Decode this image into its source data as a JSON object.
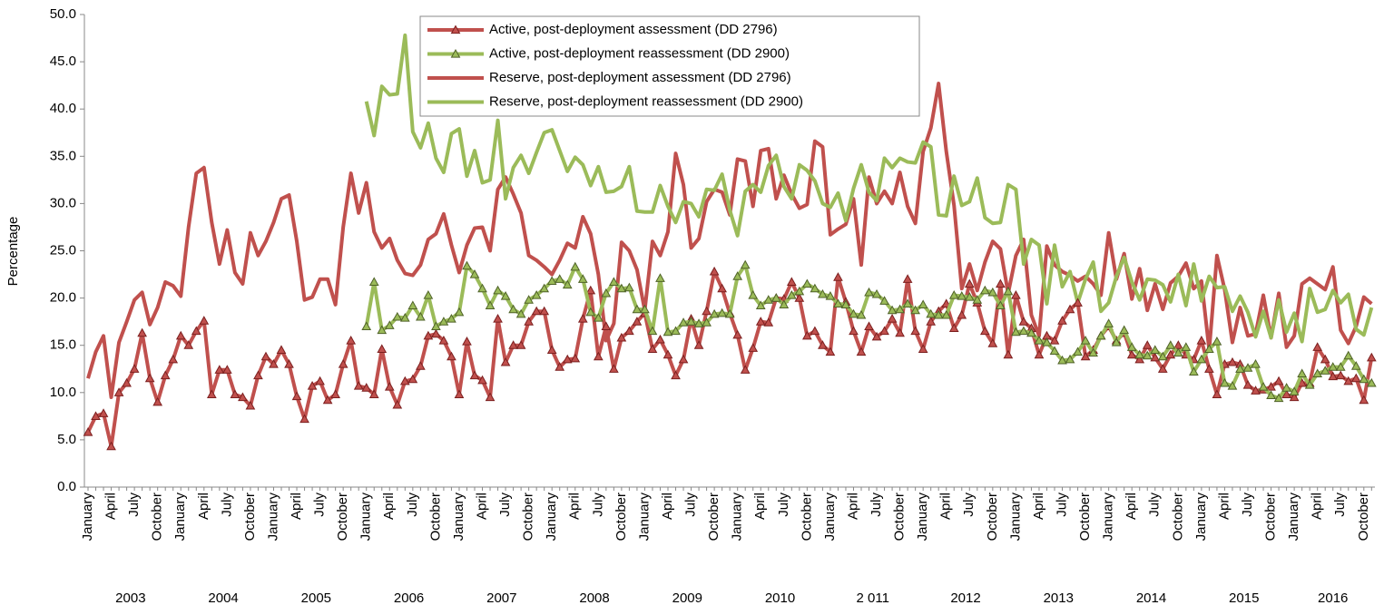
{
  "chart_data": {
    "type": "line",
    "y_label": "Percentage",
    "categories": [
      "January",
      null,
      null,
      "April",
      null,
      null,
      "July",
      null,
      null,
      "October",
      null,
      null,
      "January",
      null,
      null,
      "April",
      null,
      null,
      "July",
      null,
      null,
      "October",
      null,
      null,
      "January",
      null,
      null,
      "April",
      null,
      null,
      "July",
      null,
      null,
      "October",
      null,
      null,
      "January",
      null,
      null,
      "April",
      null,
      null,
      "July",
      null,
      null,
      "October",
      null,
      null,
      "January",
      null,
      null,
      "April",
      null,
      null,
      "July",
      null,
      null,
      "October",
      null,
      null,
      "January",
      null,
      null,
      "April",
      null,
      null,
      "July",
      null,
      null,
      "October",
      null,
      null,
      "January",
      null,
      null,
      "April",
      null,
      null,
      "July",
      null,
      null,
      "October",
      null,
      null,
      "January",
      null,
      null,
      "April",
      null,
      null,
      "July",
      null,
      null,
      "October",
      null,
      null,
      "January",
      null,
      null,
      "April",
      null,
      null,
      "July",
      null,
      null,
      "October",
      null,
      null,
      "January",
      null,
      null,
      "April",
      null,
      null,
      "July",
      null,
      null,
      "October",
      null,
      null,
      "January",
      null,
      null,
      "April",
      null,
      null,
      "July",
      null,
      null,
      "October",
      null,
      null,
      "January",
      null,
      null,
      "April",
      null,
      null,
      "July",
      null,
      null,
      "October",
      null,
      null,
      "January",
      null,
      null,
      "April",
      null,
      null,
      "July",
      null,
      null,
      "October",
      null,
      null,
      "January",
      null,
      null,
      "April",
      null,
      null,
      "July",
      null,
      null,
      "October",
      null
    ],
    "year_labels": [
      "2003",
      "2004",
      "2005",
      "2006",
      "2007",
      "2008",
      "2009",
      "2010",
      "2 011",
      "2012",
      "2013",
      "2014",
      "2015",
      "2016"
    ],
    "ylim": [
      0,
      50
    ],
    "yticks": [
      {
        "value": 0,
        "label": "0.0"
      },
      {
        "value": 5,
        "label": "5.0"
      },
      {
        "value": 10,
        "label": "10.0"
      },
      {
        "value": 15,
        "label": "15.0"
      },
      {
        "value": 20,
        "label": "20.0"
      },
      {
        "value": 25,
        "label": "25.0"
      },
      {
        "value": 30,
        "label": "30.0"
      },
      {
        "value": 35,
        "label": "35.0"
      },
      {
        "value": 40,
        "label": "40.0"
      },
      {
        "value": 45,
        "label": "45.0"
      },
      {
        "value": 50,
        "label": "50.0"
      }
    ],
    "legend": "top-center",
    "series": [
      {
        "name": "Active, post-deployment assessment (DD 2796)",
        "color": "#c0504d",
        "marker": "triangle",
        "marker_color": "#7b1f1f",
        "values": [
          5.8,
          7.5,
          7.8,
          4.3,
          10.0,
          11.0,
          12.5,
          16.3,
          11.5,
          9.0,
          11.8,
          13.5,
          16.0,
          15.0,
          16.5,
          17.6,
          9.8,
          12.4,
          12.4,
          9.8,
          9.5,
          8.6,
          11.8,
          13.8,
          13.0,
          14.5,
          13.0,
          9.6,
          7.2,
          10.7,
          11.2,
          9.2,
          9.8,
          13.0,
          15.5,
          10.7,
          10.5,
          9.8,
          14.6,
          10.6,
          8.7,
          11.2,
          11.4,
          12.8,
          16.0,
          16.2,
          15.5,
          13.8,
          9.8,
          15.4,
          11.8,
          11.3,
          9.5,
          17.8,
          13.2,
          15.0,
          15.0,
          17.5,
          18.6,
          18.6,
          14.5,
          12.7,
          13.5,
          13.6,
          17.8,
          20.8,
          13.8,
          17.0,
          12.5,
          15.8,
          16.5,
          17.5,
          18.4,
          14.6,
          15.6,
          14.0,
          11.8,
          13.5,
          17.8,
          15.0,
          18.6,
          22.8,
          21.0,
          18.4,
          16.1,
          12.4,
          14.7,
          17.5,
          17.4,
          20.0,
          19.9,
          21.7,
          20.0,
          16.0,
          16.5,
          15.0,
          14.3,
          22.2,
          19.6,
          16.5,
          14.3,
          17.0,
          15.9,
          16.5,
          17.8,
          16.3,
          22.0,
          16.5,
          14.6,
          17.5,
          18.6,
          19.4,
          16.8,
          18.2,
          21.5,
          19.5,
          16.5,
          15.2,
          21.5,
          14.0,
          20.3,
          17.5,
          16.8,
          14.0,
          16.0,
          15.5,
          17.6,
          18.8,
          19.5,
          13.8,
          14.5,
          16.0,
          17.0,
          15.5,
          16.3,
          14.0,
          13.5,
          15.0,
          13.7,
          12.5,
          14.0,
          15.0,
          14.0,
          13.5,
          15.5,
          12.5,
          9.8,
          13.0,
          13.2,
          13.0,
          10.8,
          10.2,
          10.3,
          10.6,
          11.2,
          9.8,
          9.5,
          11.0,
          11.0,
          14.8,
          13.5,
          11.7,
          11.8,
          11.2,
          11.5,
          9.2,
          13.7
        ]
      },
      {
        "name": "Active, post-deployment reassessment (DD 2900)",
        "color": "#9bbb59",
        "marker": "triangle",
        "marker_color": "#4f6228",
        "values": [
          null,
          null,
          null,
          null,
          null,
          null,
          null,
          null,
          null,
          null,
          null,
          null,
          null,
          null,
          null,
          null,
          null,
          null,
          null,
          null,
          null,
          null,
          null,
          null,
          null,
          null,
          null,
          null,
          null,
          null,
          null,
          null,
          null,
          null,
          null,
          null,
          17.0,
          21.7,
          16.6,
          17.1,
          18.0,
          17.9,
          19.2,
          18.0,
          20.3,
          17.0,
          17.5,
          17.8,
          18.5,
          23.4,
          22.5,
          21.0,
          19.2,
          20.8,
          20.2,
          18.8,
          18.3,
          19.8,
          20.3,
          21.0,
          21.8,
          22.0,
          21.4,
          23.3,
          22.0,
          18.5,
          17.9,
          20.5,
          21.7,
          21.0,
          21.1,
          18.8,
          18.8,
          16.5,
          22.1,
          16.4,
          16.5,
          17.4,
          17.5,
          17.3,
          17.4,
          18.3,
          18.4,
          18.3,
          22.3,
          23.5,
          20.3,
          19.2,
          19.8,
          20.0,
          19.3,
          20.3,
          20.7,
          21.5,
          21.0,
          20.4,
          20.2,
          19.4,
          19.3,
          18.3,
          18.2,
          20.6,
          20.4,
          19.7,
          18.7,
          18.8,
          19.4,
          18.7,
          19.3,
          18.3,
          18.2,
          18.2,
          20.3,
          20.2,
          20.1,
          19.8,
          20.8,
          20.6,
          19.2,
          20.7,
          16.4,
          16.5,
          16.3,
          15.5,
          15.3,
          14.4,
          13.4,
          13.5,
          14.3,
          15.5,
          14.2,
          16.0,
          17.3,
          15.3,
          16.6,
          14.8,
          14.0,
          13.9,
          14.5,
          13.8,
          15.0,
          14.2,
          14.8,
          12.2,
          13.5,
          14.6,
          15.4,
          11.0,
          10.7,
          12.5,
          12.6,
          13.0,
          10.6,
          9.7,
          9.4,
          10.5,
          10.1,
          12.0,
          10.8,
          12.0,
          12.3,
          12.7,
          12.7,
          13.9,
          12.8,
          11.4,
          11.0
        ]
      },
      {
        "name": "Reserve, post-deployment assessment (DD 2796)",
        "color": "#c0504d",
        "values": [
          11.5,
          14.3,
          16.0,
          9.5,
          15.3,
          17.5,
          19.8,
          20.6,
          17.2,
          19.0,
          21.7,
          21.3,
          20.2,
          27.5,
          33.2,
          33.8,
          28.0,
          23.6,
          27.2,
          22.7,
          21.5,
          26.9,
          24.5,
          26.0,
          28.0,
          30.5,
          30.9,
          26.0,
          19.8,
          20.1,
          22.0,
          22.0,
          19.3,
          27.5,
          33.2,
          29.0,
          32.2,
          27.0,
          25.3,
          26.3,
          24.0,
          22.6,
          22.4,
          23.5,
          26.2,
          26.8,
          28.9,
          25.6,
          22.7,
          25.6,
          27.4,
          27.5,
          25.0,
          31.5,
          32.8,
          31.0,
          29.0,
          24.5,
          24.0,
          23.3,
          22.5,
          24.0,
          25.8,
          25.3,
          28.6,
          26.8,
          22.5,
          15.5,
          17.3,
          25.9,
          25.0,
          23.0,
          18.7,
          26.0,
          24.5,
          27.0,
          35.3,
          32.0,
          25.3,
          26.3,
          30.2,
          31.5,
          31.2,
          28.8,
          34.7,
          34.5,
          29.7,
          35.6,
          35.8,
          30.5,
          33.0,
          31.0,
          29.5,
          29.9,
          36.6,
          36.0,
          26.7,
          27.3,
          27.8,
          30.5,
          23.5,
          32.8,
          30.0,
          31.3,
          30.0,
          33.3,
          29.7,
          27.9,
          35.5,
          38.0,
          42.7,
          35.5,
          29.8,
          21.0,
          23.6,
          20.8,
          23.8,
          26.0,
          25.2,
          20.5,
          24.5,
          26.2,
          18.2,
          16.0,
          25.5,
          23.5,
          22.8,
          22.4,
          21.8,
          22.3,
          21.5,
          20.3,
          26.9,
          22.0,
          24.7,
          19.9,
          23.1,
          18.7,
          21.5,
          18.8,
          21.6,
          22.3,
          23.7,
          21.0,
          21.8,
          14.5,
          24.5,
          20.9,
          15.3,
          19.0,
          16.0,
          16.2,
          20.3,
          15.8,
          20.5,
          14.8,
          16.0,
          21.5,
          22.1,
          21.5,
          20.9,
          23.3,
          16.6,
          15.2,
          17.0,
          20.1,
          19.4
        ]
      },
      {
        "name": "Reserve, post-deployment reassessment (DD 2900)",
        "color": "#9bbb59",
        "values": [
          null,
          null,
          null,
          null,
          null,
          null,
          null,
          null,
          null,
          null,
          null,
          null,
          null,
          null,
          null,
          null,
          null,
          null,
          null,
          null,
          null,
          null,
          null,
          null,
          null,
          null,
          null,
          null,
          null,
          null,
          null,
          null,
          null,
          null,
          null,
          null,
          40.8,
          37.2,
          42.4,
          41.5,
          41.6,
          47.8,
          37.6,
          35.9,
          38.5,
          34.8,
          33.3,
          37.4,
          37.9,
          32.9,
          35.6,
          32.2,
          32.5,
          38.8,
          30.5,
          33.8,
          35.1,
          33.2,
          35.4,
          37.5,
          37.8,
          35.6,
          33.4,
          34.9,
          34.1,
          31.9,
          33.9,
          31.2,
          31.3,
          31.8,
          33.9,
          29.2,
          29.1,
          29.1,
          31.9,
          29.7,
          28.0,
          30.2,
          30.0,
          28.6,
          31.5,
          31.4,
          33.1,
          29.3,
          26.6,
          31.3,
          32.0,
          31.2,
          34.0,
          35.1,
          31.8,
          30.5,
          34.1,
          33.5,
          32.4,
          30.0,
          29.6,
          31.1,
          28.2,
          31.6,
          34.1,
          31.2,
          30.3,
          34.8,
          33.8,
          34.8,
          34.4,
          34.3,
          36.5,
          36.0,
          28.8,
          28.7,
          32.9,
          29.8,
          30.2,
          32.7,
          28.5,
          27.9,
          28.0,
          32.0,
          31.5,
          23.6,
          26.2,
          25.6,
          19.4,
          25.6,
          21.2,
          22.8,
          19.5,
          22.0,
          23.8,
          18.6,
          19.5,
          22.3,
          24.3,
          21.7,
          19.8,
          22.0,
          21.9,
          21.4,
          19.6,
          22.5,
          19.2,
          23.6,
          19.7,
          22.3,
          21.1,
          21.2,
          18.6,
          20.2,
          18.5,
          15.9,
          18.6,
          15.8,
          19.8,
          16.4,
          18.4,
          15.4,
          21.0,
          18.5,
          18.8,
          20.8,
          19.5,
          20.4,
          16.7,
          16.1,
          19.0
        ]
      }
    ]
  }
}
